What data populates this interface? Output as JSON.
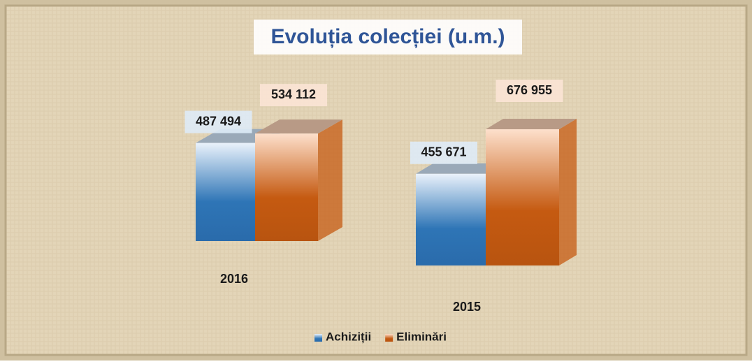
{
  "chart_data": {
    "type": "bar3d",
    "title": "Evoluția colecției (u.m.)",
    "categories": [
      "2016",
      "2015"
    ],
    "series": [
      {
        "name": "Achiziții",
        "color": "#2e75b6",
        "values": [
          487494,
          455671
        ],
        "value_labels": [
          "487 494",
          "455 671"
        ]
      },
      {
        "name": "Eliminări",
        "color": "#c55a11",
        "values": [
          534112,
          676955
        ],
        "value_labels": [
          "534 112",
          "676 955"
        ]
      }
    ]
  }
}
